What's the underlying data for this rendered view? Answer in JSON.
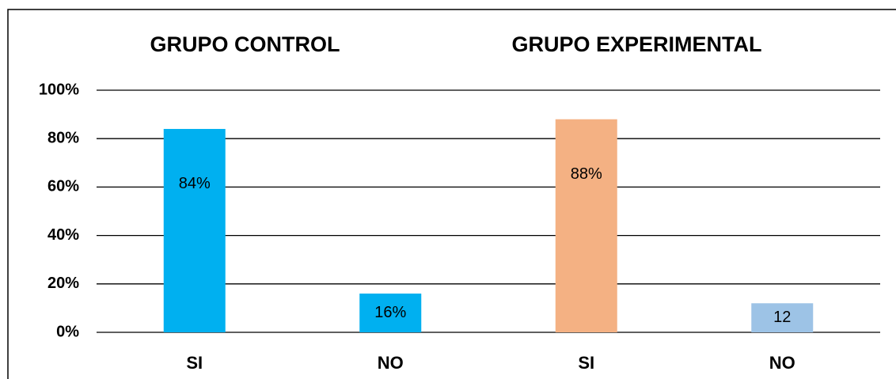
{
  "chart_data": {
    "type": "bar",
    "group_labels": [
      "GRUPO CONTROL",
      "GRUPO EXPERIMENTAL"
    ],
    "categories": [
      "SI",
      "NO",
      "SI",
      "NO"
    ],
    "values": [
      84,
      16,
      88,
      12
    ],
    "value_labels": [
      "84%",
      "16%",
      "88%",
      "12"
    ],
    "colors": [
      "#00b0f0",
      "#00b0f0",
      "#f4b183",
      "#9dc3e6"
    ],
    "ylim": [
      0,
      100
    ],
    "yticks": [
      {
        "value": 0,
        "label": "0%"
      },
      {
        "value": 20,
        "label": "20%"
      },
      {
        "value": 40,
        "label": "40%"
      },
      {
        "value": 60,
        "label": "60%"
      },
      {
        "value": 80,
        "label": "80%"
      },
      {
        "value": 100,
        "label": "100%"
      }
    ],
    "grid": true
  }
}
